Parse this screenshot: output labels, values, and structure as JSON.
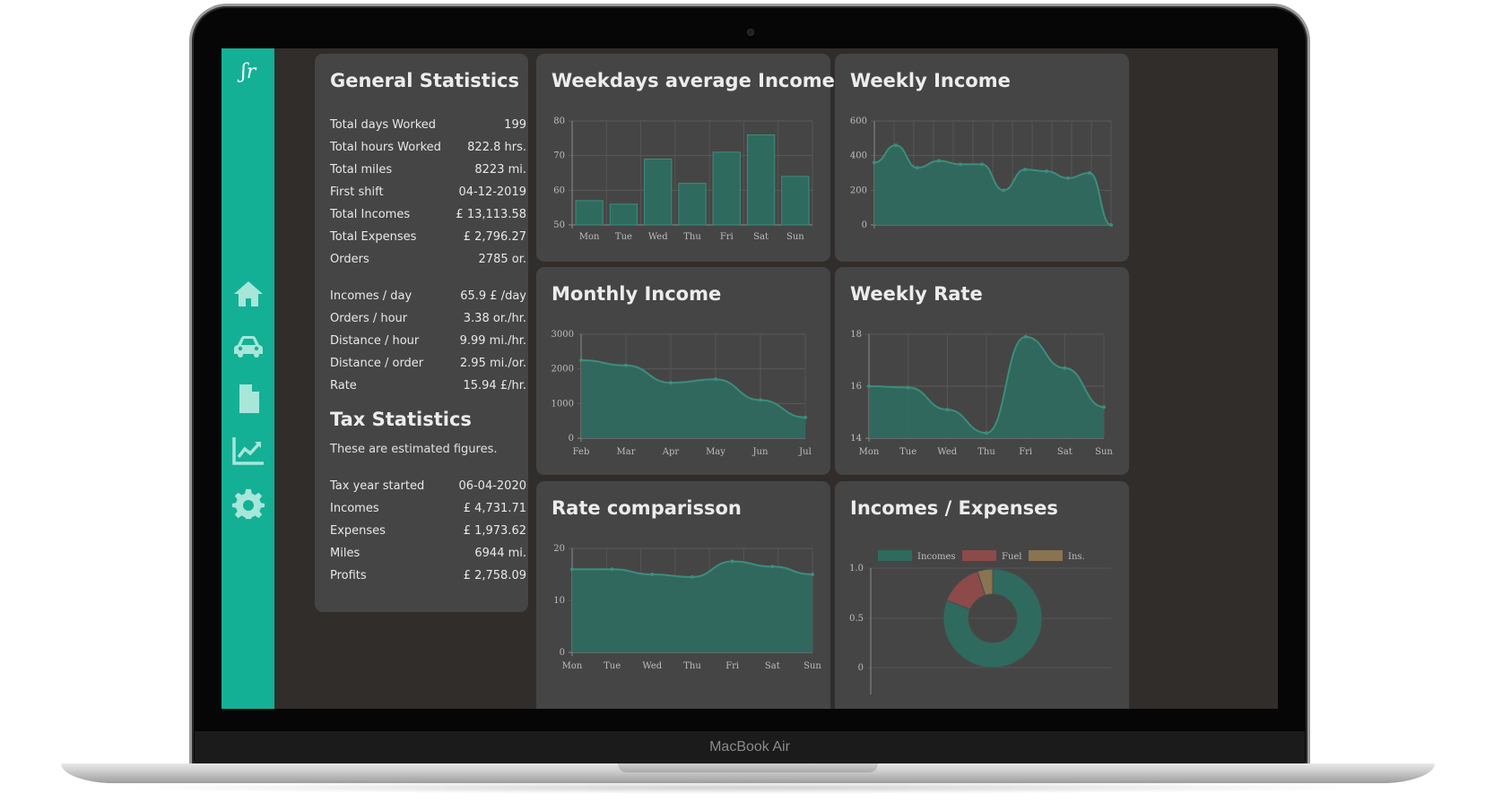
{
  "device": {
    "label": "MacBook Air"
  },
  "sidebar": {
    "logo_text": "ʃr",
    "items": [
      {
        "icon": "home-icon"
      },
      {
        "icon": "car-icon"
      },
      {
        "icon": "document-icon"
      },
      {
        "icon": "chart-line-icon"
      },
      {
        "icon": "gear-icon"
      }
    ]
  },
  "colors": {
    "accent": "#14b096",
    "fill": "#2f6a5f",
    "stroke": "#3d8d7c",
    "fuel": "#8c4a4a",
    "ins": "#8a7350"
  },
  "general": {
    "title": "General Statistics",
    "rows": [
      {
        "label": "Total days Worked",
        "value": "199"
      },
      {
        "label": "Total hours Worked",
        "value": "822.8 hrs."
      },
      {
        "label": "Total miles",
        "value": "8223 mi."
      },
      {
        "label": "First shift",
        "value": "04-12-2019"
      },
      {
        "label": "Total Incomes",
        "value": "£ 13,113.58"
      },
      {
        "label": "Total Expenses",
        "value": "£ 2,796.27"
      },
      {
        "label": "Orders",
        "value": "2785 or."
      },
      {
        "label": "Incomes / day",
        "value": "65.9 £ /day"
      },
      {
        "label": "Orders / hour",
        "value": "3.38 or./hr."
      },
      {
        "label": "Distance / hour",
        "value": "9.99 mi./hr."
      },
      {
        "label": "Distance / order",
        "value": "2.95 mi./or."
      },
      {
        "label": "Rate",
        "value": "15.94 £/hr."
      }
    ]
  },
  "tax": {
    "title": "Tax Statistics",
    "subtitle": "These are estimated figures.",
    "rows": [
      {
        "label": "Tax year started",
        "value": "06-04-2020"
      },
      {
        "label": "Incomes",
        "value": "£ 4,731.71"
      },
      {
        "label": "Expenses",
        "value": "£ 1,973.62"
      },
      {
        "label": "Miles",
        "value": "6944 mi."
      },
      {
        "label": "Profits",
        "value": "£ 2,758.09"
      }
    ]
  },
  "chart_data": [
    {
      "id": "weekdays",
      "type": "bar",
      "title": "Weekdays average Income",
      "categories": [
        "Mon",
        "Tue",
        "Wed",
        "Thu",
        "Fri",
        "Sat",
        "Sun"
      ],
      "values": [
        57,
        56,
        69,
        62,
        71,
        76,
        64
      ],
      "ylim": [
        50,
        80
      ],
      "yticks": [
        50,
        60,
        70,
        80
      ],
      "grid": true
    },
    {
      "id": "weekly_income",
      "type": "area",
      "title": "Weekly Income",
      "values": [
        360,
        460,
        330,
        370,
        350,
        350,
        200,
        320,
        310,
        270,
        300,
        0
      ],
      "ylim": [
        0,
        600
      ],
      "yticks": [
        0,
        200,
        400,
        600
      ],
      "grid": true
    },
    {
      "id": "monthly_income",
      "type": "area",
      "title": "Monthly Income",
      "categories": [
        "Feb",
        "Mar",
        "Apr",
        "May",
        "Jun",
        "Jul"
      ],
      "values": [
        2250,
        2100,
        1600,
        1700,
        1100,
        600
      ],
      "ylim": [
        0,
        3000
      ],
      "yticks": [
        0,
        1000,
        2000,
        3000
      ],
      "grid": true
    },
    {
      "id": "weekly_rate",
      "type": "area",
      "title": "Weekly Rate",
      "categories": [
        "Mon",
        "Tue",
        "Wed",
        "Thu",
        "Fri",
        "Sat",
        "Sun"
      ],
      "values": [
        16.0,
        15.95,
        15.1,
        14.2,
        17.9,
        16.7,
        15.2
      ],
      "ylim": [
        14,
        18
      ],
      "yticks": [
        14,
        16,
        18
      ],
      "grid": true
    },
    {
      "id": "rate_comparison",
      "type": "area",
      "title": "Rate comparisson",
      "categories": [
        "Mon",
        "Tue",
        "Wed",
        "Thu",
        "Fri",
        "Sat",
        "Sun"
      ],
      "values": [
        16,
        16,
        15,
        14.5,
        17.5,
        16.5,
        15
      ],
      "ylim": [
        0,
        20
      ],
      "yticks": [
        0,
        10,
        20
      ],
      "grid": true
    },
    {
      "id": "incomes_expenses",
      "type": "pie",
      "title": "Incomes / Expenses",
      "legend": [
        "Incomes",
        "Fuel",
        "Ins."
      ],
      "values": [
        81,
        14,
        5
      ],
      "yticks": [
        "0",
        "0.5",
        "1.0"
      ],
      "legend_position": "top"
    }
  ]
}
